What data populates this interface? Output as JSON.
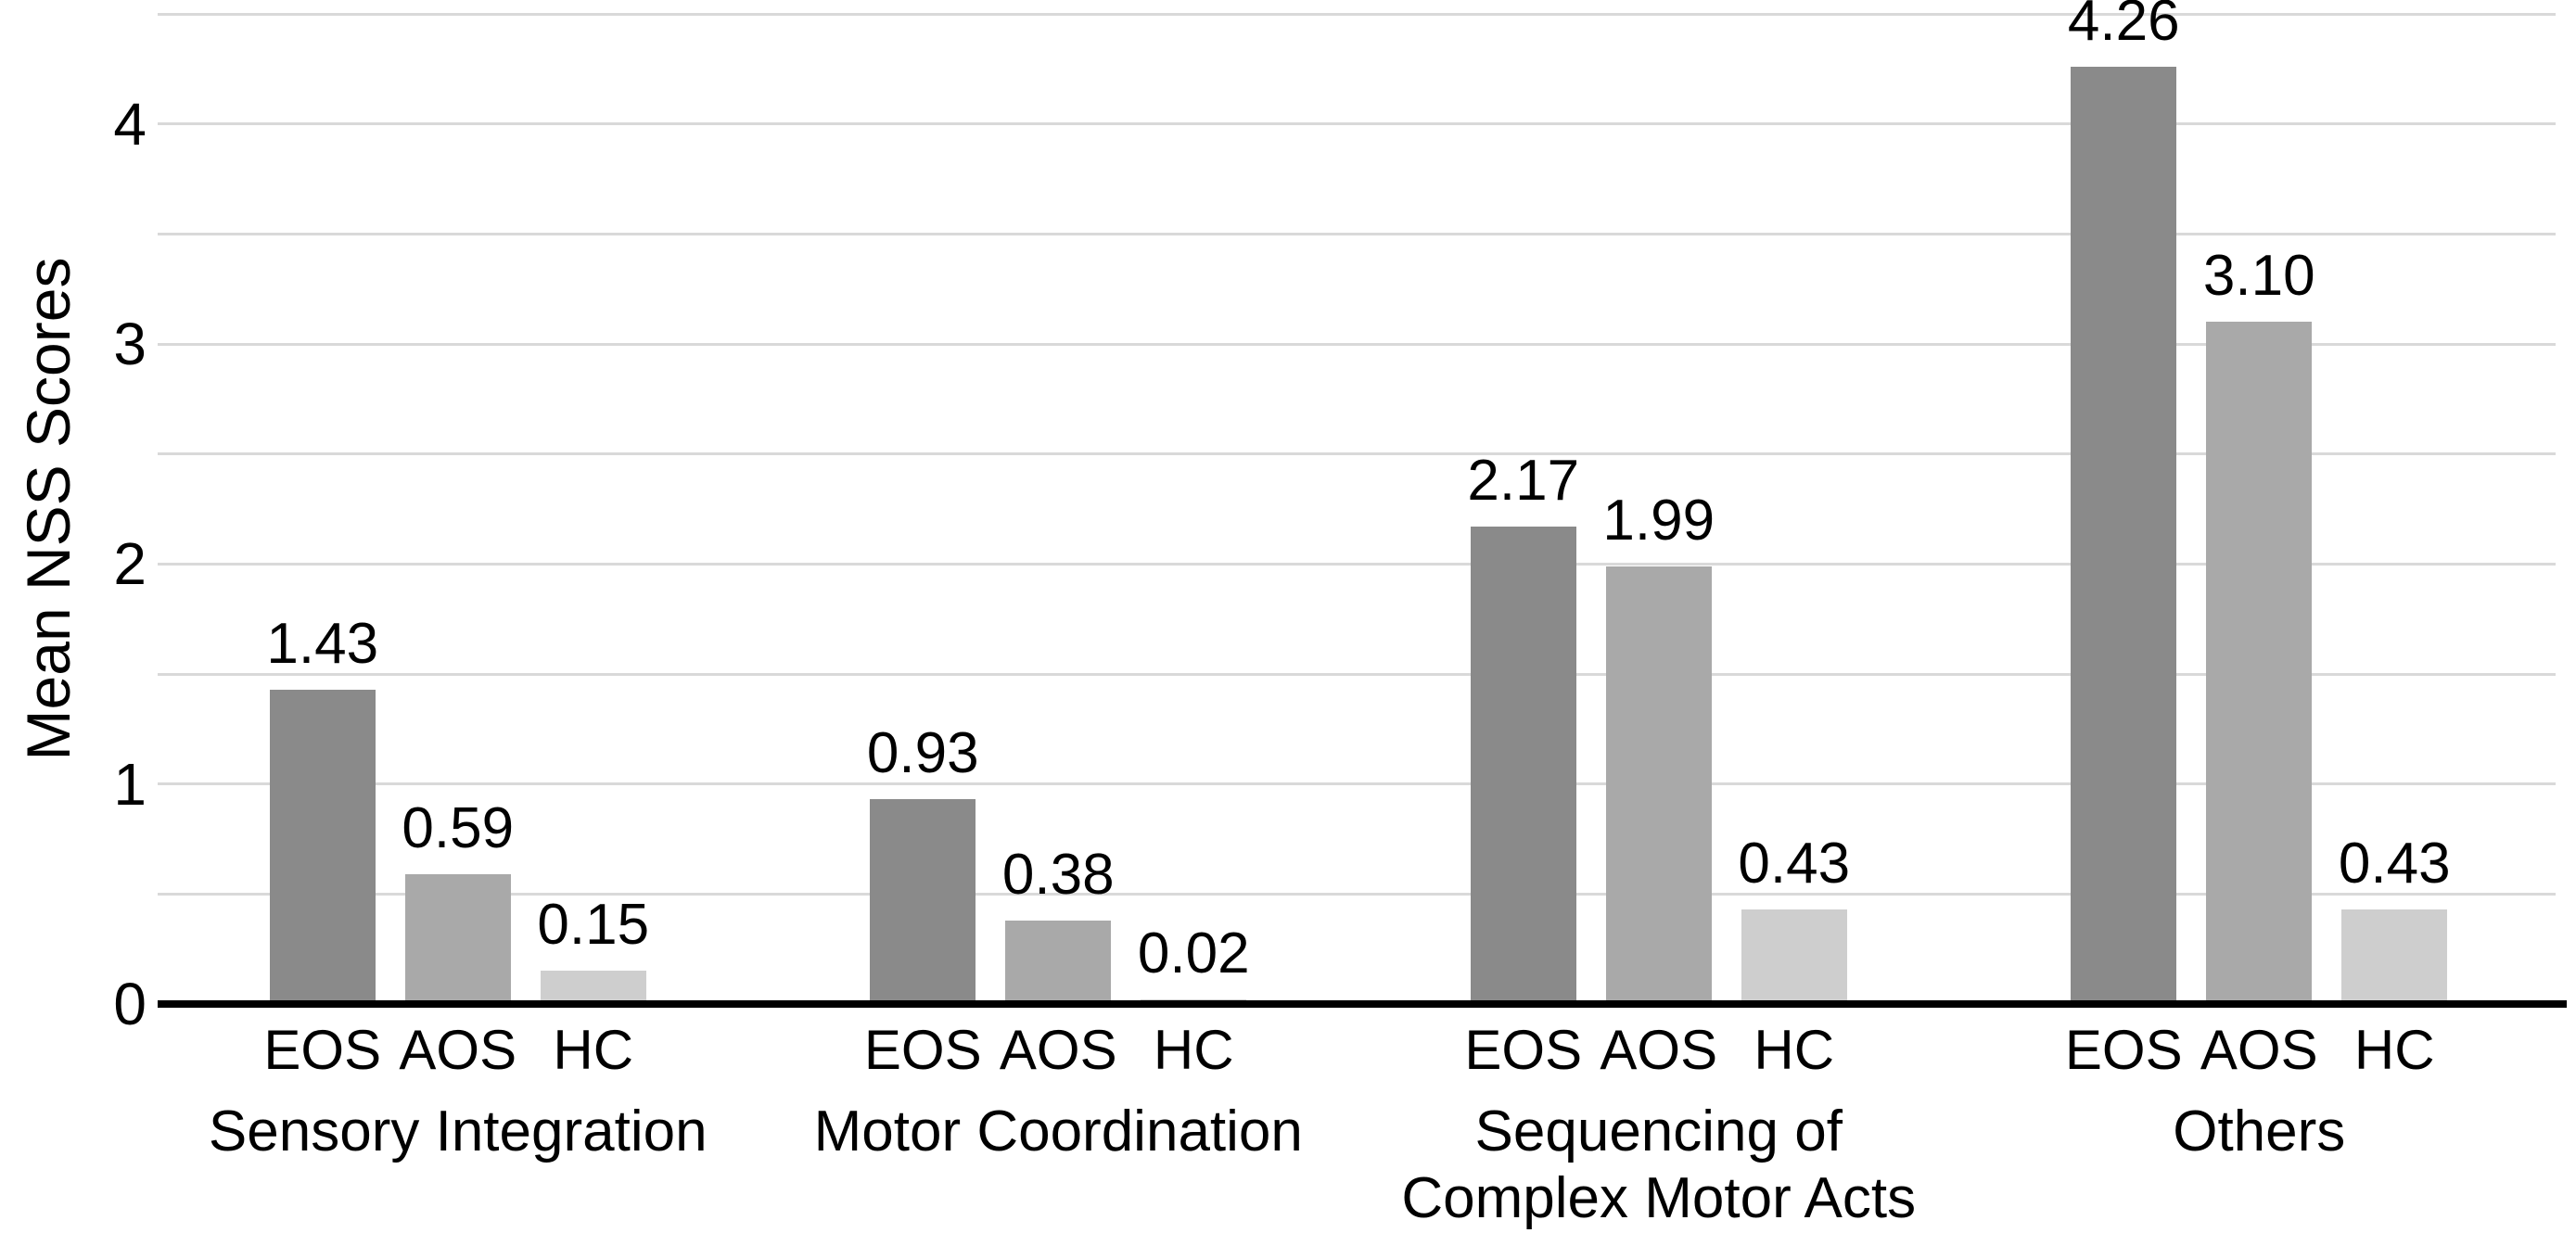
{
  "chart_data": {
    "type": "bar",
    "title": "",
    "ylabel": "Mean NSS Scores",
    "xlabel": "",
    "ylim": [
      0,
      4.5
    ],
    "yticks": [
      0,
      1,
      2,
      3,
      4
    ],
    "gridline_interval": 0.5,
    "grid": true,
    "legend_position": "none",
    "categories": [
      {
        "label_lines": [
          "Sensory Integration"
        ]
      },
      {
        "label_lines": [
          "Motor Coordination"
        ]
      },
      {
        "label_lines": [
          "Sequencing of",
          "Complex Motor Acts"
        ]
      },
      {
        "label_lines": [
          "Others"
        ]
      }
    ],
    "series": [
      {
        "name": "EOS",
        "color": "#8a8a8a",
        "values": [
          1.43,
          0.93,
          2.17,
          4.26
        ],
        "labels": [
          "1.43",
          "0.93",
          "2.17",
          "4.26"
        ]
      },
      {
        "name": "AOS",
        "color": "#a9a9a9",
        "values": [
          0.59,
          0.38,
          1.99,
          3.1
        ],
        "labels": [
          "0.59",
          "0.38",
          "1.99",
          "3.10"
        ]
      },
      {
        "name": "HC",
        "color": "#cecece",
        "values": [
          0.15,
          0.02,
          0.43,
          0.43
        ],
        "labels": [
          "0.15",
          "0.02",
          "0.43",
          "0.43"
        ]
      }
    ],
    "colors": {
      "gridline": "#d9d9d9",
      "axis_line": "#000000",
      "text": "#000000",
      "background": "#ffffff"
    }
  }
}
